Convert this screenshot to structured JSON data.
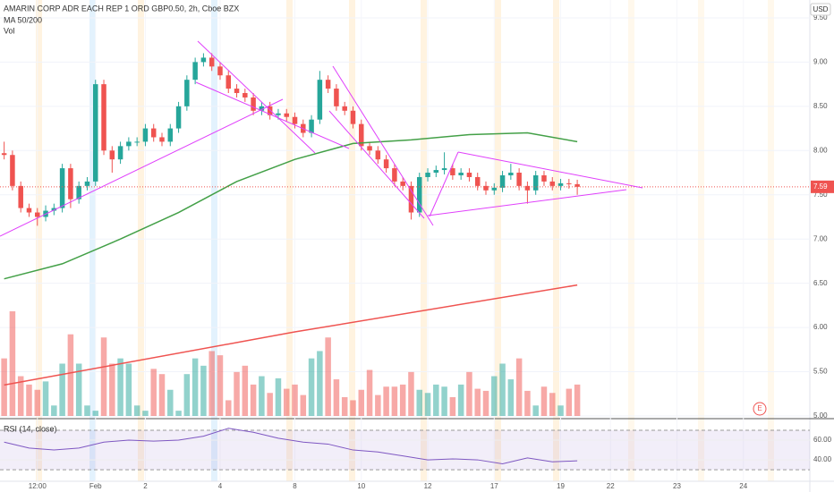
{
  "chart_data": {
    "type": "candlestick",
    "title": "AMARIN CORP ADR EACH REP 1 ORD GBP0.50, 2h, Cboe BZX",
    "indicator_label": "MA 50/200",
    "volume_label": "Vol",
    "currency": "USD",
    "last_price_label": "7.59",
    "earnings_marker": "E",
    "xlim": [
      -0.5,
      97
    ],
    "xticks": [
      {
        "value": 4,
        "label": "12:00"
      },
      {
        "value": 11,
        "label": "Feb"
      },
      {
        "value": 17,
        "label": "2"
      },
      {
        "value": 26,
        "label": "4"
      },
      {
        "value": 35,
        "label": "8"
      },
      {
        "value": 43,
        "label": "10"
      },
      {
        "value": 51,
        "label": "12"
      },
      {
        "value": 59,
        "label": "17"
      },
      {
        "value": 67,
        "label": "19"
      },
      {
        "value": 73,
        "label": "22"
      },
      {
        "value": 81,
        "label": "23"
      },
      {
        "value": 89,
        "label": "24"
      }
    ],
    "ylim": [
      5.0,
      9.55
    ],
    "yticks": [
      {
        "value": 5.0,
        "label": "5.00"
      },
      {
        "value": 5.5,
        "label": "5.50"
      },
      {
        "value": 6.0,
        "label": "6.00"
      },
      {
        "value": 6.5,
        "label": "6.50"
      },
      {
        "value": 7.0,
        "label": "7.00"
      },
      {
        "value": 7.5,
        "label": "7.50"
      },
      {
        "value": 8.0,
        "label": "8.00"
      },
      {
        "value": 8.5,
        "label": "8.50"
      },
      {
        "value": 9.0,
        "label": "9.00"
      },
      {
        "value": 9.5,
        "label": "9.50"
      }
    ],
    "up_color": "#26a69a",
    "down_color": "#ef5350",
    "open": [
      7.97,
      7.95,
      7.6,
      7.35,
      7.3,
      7.25,
      7.32,
      7.35,
      7.8,
      7.45,
      7.6,
      7.65,
      8.75,
      8.0,
      7.9,
      8.05,
      8.1,
      8.1,
      8.25,
      8.15,
      8.1,
      8.25,
      8.5,
      8.8,
      9.0,
      9.05,
      8.95,
      8.85,
      8.7,
      8.65,
      8.6,
      8.45,
      8.5,
      8.4,
      8.42,
      8.38,
      8.3,
      8.2,
      8.35,
      8.8,
      8.7,
      8.5,
      8.45,
      8.3,
      8.05,
      8.0,
      7.9,
      7.8,
      7.65,
      7.6,
      7.3,
      7.7,
      7.75,
      7.78,
      7.8,
      7.72,
      7.75,
      7.7,
      7.6,
      7.55,
      7.58,
      7.72,
      7.75,
      7.6,
      7.55,
      7.72,
      7.65,
      7.6,
      7.63,
      7.62
    ],
    "high": [
      8.1,
      8.0,
      7.65,
      7.4,
      7.35,
      7.38,
      7.4,
      7.85,
      7.85,
      7.65,
      7.7,
      8.8,
      8.8,
      8.05,
      8.1,
      8.15,
      8.15,
      8.3,
      8.3,
      8.2,
      8.3,
      8.55,
      8.85,
      9.05,
      9.1,
      9.1,
      9.0,
      8.9,
      8.75,
      8.7,
      8.65,
      8.55,
      8.55,
      8.47,
      8.47,
      8.43,
      8.35,
      8.4,
      8.9,
      8.85,
      8.75,
      8.55,
      8.5,
      8.35,
      8.1,
      8.05,
      7.95,
      7.85,
      7.7,
      7.65,
      7.75,
      7.8,
      7.83,
      7.98,
      7.85,
      7.8,
      7.8,
      7.75,
      7.65,
      7.63,
      7.77,
      7.85,
      7.8,
      7.65,
      7.77,
      7.77,
      7.7,
      7.68,
      7.68,
      7.67
    ],
    "low": [
      7.9,
      7.55,
      7.3,
      7.25,
      7.15,
      7.2,
      7.27,
      7.3,
      7.35,
      7.4,
      7.55,
      7.6,
      7.95,
      7.75,
      7.85,
      8.0,
      8.05,
      8.05,
      8.1,
      8.05,
      8.05,
      8.2,
      8.45,
      8.75,
      8.95,
      8.9,
      8.8,
      8.65,
      8.6,
      8.55,
      8.4,
      8.4,
      8.35,
      8.35,
      8.33,
      8.25,
      8.15,
      8.15,
      8.3,
      8.65,
      8.45,
      8.4,
      8.25,
      8.0,
      7.95,
      7.85,
      7.75,
      7.6,
      7.55,
      7.22,
      7.25,
      7.65,
      7.7,
      7.73,
      7.67,
      7.67,
      7.65,
      7.55,
      7.5,
      7.5,
      7.53,
      7.67,
      7.55,
      7.4,
      7.5,
      7.6,
      7.55,
      7.55,
      7.57,
      7.5
    ],
    "close": [
      7.95,
      7.6,
      7.35,
      7.3,
      7.25,
      7.32,
      7.35,
      7.8,
      7.45,
      7.6,
      7.65,
      8.75,
      8.0,
      7.9,
      8.05,
      8.1,
      8.1,
      8.25,
      8.15,
      8.1,
      8.25,
      8.5,
      8.8,
      9.0,
      9.05,
      8.95,
      8.85,
      8.7,
      8.65,
      8.6,
      8.45,
      8.5,
      8.4,
      8.42,
      8.38,
      8.3,
      8.2,
      8.35,
      8.8,
      8.7,
      8.5,
      8.45,
      8.3,
      8.05,
      8.0,
      7.9,
      7.8,
      7.65,
      7.6,
      7.3,
      7.7,
      7.75,
      7.78,
      7.8,
      7.72,
      7.75,
      7.7,
      7.6,
      7.55,
      7.58,
      7.72,
      7.75,
      7.6,
      7.55,
      7.72,
      7.65,
      7.6,
      7.63,
      7.62,
      7.59
    ],
    "volume": [
      55,
      100,
      38,
      30,
      25,
      33,
      10,
      50,
      78,
      50,
      10,
      5,
      75,
      50,
      55,
      50,
      10,
      5,
      45,
      40,
      25,
      5,
      40,
      55,
      48,
      62,
      58,
      15,
      42,
      48,
      30,
      38,
      22,
      36,
      26,
      30,
      20,
      55,
      62,
      75,
      35,
      18,
      15,
      25,
      44,
      20,
      28,
      28,
      30,
      42,
      25,
      22,
      30,
      28,
      18,
      30,
      42,
      26,
      24,
      38,
      50,
      35,
      55,
      24,
      10,
      28,
      22,
      10,
      26,
      30
    ],
    "volume_max": 100,
    "moving_averages": [
      {
        "color": "#43a047",
        "x": [
          0,
          7,
          14,
          21,
          28,
          35,
          42,
          49,
          56,
          63,
          69
        ],
        "values": [
          6.55,
          6.72,
          7.0,
          7.3,
          7.65,
          7.9,
          8.08,
          8.12,
          8.18,
          8.2,
          8.1
        ]
      },
      {
        "color": "#ef5350",
        "x": [
          0,
          35,
          69
        ],
        "values": [
          5.35,
          5.95,
          6.48
        ]
      }
    ],
    "rsi": {
      "label": "RSI (14, close)",
      "color": "#7e57c2",
      "x": [
        0,
        3,
        6,
        9,
        12,
        15,
        18,
        21,
        24,
        27,
        30,
        33,
        36,
        39,
        42,
        45,
        48,
        51,
        54,
        57,
        60,
        63,
        66,
        69
      ],
      "values": [
        58,
        52,
        50,
        52,
        58,
        60,
        59,
        60,
        64,
        72,
        68,
        62,
        58,
        56,
        50,
        48,
        44,
        40,
        41,
        40,
        36,
        42,
        38,
        39
      ],
      "ylim": [
        21,
        80
      ],
      "bands": [
        30,
        70
      ],
      "yticks": [
        {
          "value": 40,
          "label": "40.00"
        },
        {
          "value": 60,
          "label": "60.00"
        }
      ]
    }
  }
}
